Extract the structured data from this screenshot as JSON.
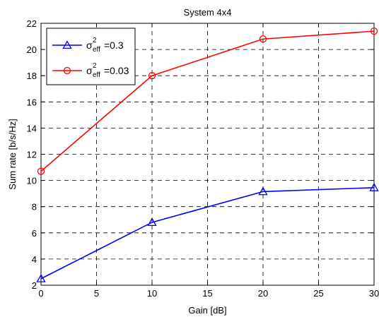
{
  "chart_data": {
    "type": "line",
    "title": "System 4x4",
    "xlabel": "Gain [dB]",
    "ylabel": "Sum rate [b/s/Hz]",
    "x": [
      0,
      10,
      20,
      30
    ],
    "xlim": [
      0,
      30
    ],
    "ylim": [
      2,
      22
    ],
    "xticks": [
      "0",
      "5",
      "10",
      "15",
      "20",
      "25",
      "30"
    ],
    "yticks": [
      "2",
      "4",
      "6",
      "8",
      "10",
      "12",
      "14",
      "16",
      "18",
      "20",
      "22"
    ],
    "grid": true,
    "legend_position": "top-left",
    "series": [
      {
        "name": "σ²eff=0.3",
        "legend": {
          "sym": "σ",
          "sup": "2",
          "sub": "eff",
          "rest": "=0.3"
        },
        "values": [
          2.5,
          6.8,
          9.15,
          9.45
        ],
        "color": "#0000ff",
        "marker": "triangle"
      },
      {
        "name": "σ²eff=0.03",
        "legend": {
          "sym": "σ",
          "sup": "2",
          "sub": "eff",
          "rest": "=0.03"
        },
        "values": [
          10.7,
          18.0,
          20.8,
          21.4
        ],
        "color": "#ff0000",
        "marker": "circle"
      }
    ]
  }
}
